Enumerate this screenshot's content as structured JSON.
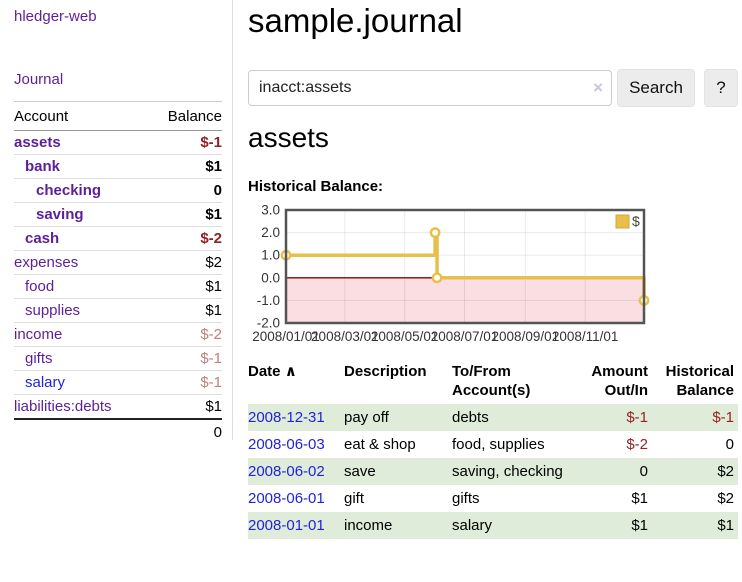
{
  "app": {
    "brand": "hledger-web",
    "nav_journal": "Journal"
  },
  "colors": {
    "link_purple": "#5c1f99",
    "link_blue": "#2222dd",
    "negative_strong": "#941f1f",
    "negative_soft": "#bf7e7e",
    "row_green": "#deecd9",
    "gold": "#e8bf4a",
    "pink_region": "#fbdee1",
    "zero_line": "#8b0000"
  },
  "sidebar": {
    "headers": {
      "account": "Account",
      "balance": "Balance"
    },
    "accounts": [
      {
        "name": "assets",
        "indent": 0,
        "balance": "$-1",
        "bold": true,
        "bal_style": "neg-strong",
        "link": "purple"
      },
      {
        "name": "bank",
        "indent": 1,
        "balance": "$1",
        "bold": true,
        "bal_style": "pos-strong",
        "link": "purple"
      },
      {
        "name": "checking",
        "indent": 2,
        "balance": "0",
        "bold": true,
        "bal_style": "pos-strong",
        "link": "purple"
      },
      {
        "name": "saving",
        "indent": 2,
        "balance": "$1",
        "bold": true,
        "bal_style": "pos-strong",
        "link": "purple"
      },
      {
        "name": "cash",
        "indent": 1,
        "balance": "$-2",
        "bold": true,
        "bal_style": "neg-strong",
        "link": "purple"
      },
      {
        "name": "expenses",
        "indent": 0,
        "balance": "$2",
        "bold": false,
        "bal_style": "pos",
        "link": "purple"
      },
      {
        "name": "food",
        "indent": 1,
        "balance": "$1",
        "bold": false,
        "bal_style": "pos",
        "link": "purple"
      },
      {
        "name": "supplies",
        "indent": 1,
        "balance": "$1",
        "bold": false,
        "bal_style": "pos",
        "link": "purple"
      },
      {
        "name": "income",
        "indent": 0,
        "balance": "$-2",
        "bold": false,
        "bal_style": "neg-soft",
        "link": "purple"
      },
      {
        "name": "gifts",
        "indent": 1,
        "balance": "$-1",
        "bold": false,
        "bal_style": "neg-soft",
        "link": "purple"
      },
      {
        "name": "salary",
        "indent": 1,
        "balance": "$-1",
        "bold": false,
        "bal_style": "neg-soft",
        "link": "blue"
      },
      {
        "name": "liabilities:debts",
        "indent": 0,
        "balance": "$1",
        "bold": false,
        "bal_style": "pos",
        "link": "purple"
      }
    ],
    "total": "0"
  },
  "main": {
    "title": "sample.journal",
    "search": {
      "value": "inacct:assets",
      "clear_icon": "×",
      "search_button": "Search",
      "help_button": "?"
    },
    "account_heading": "assets",
    "chart_label": "Historical Balance:"
  },
  "chart_data": {
    "type": "line",
    "title": "Historical Balance:",
    "step": true,
    "series": [
      {
        "name": "$",
        "color": "#e8bf4a",
        "points": [
          [
            "2008-01-01",
            1
          ],
          [
            "2008-06-01",
            2
          ],
          [
            "2008-06-03",
            0
          ],
          [
            "2008-12-31",
            -1
          ]
        ]
      }
    ],
    "x_range": [
      "2008-01-01",
      "2008-12-31"
    ],
    "ylim": [
      -2,
      3
    ],
    "yticks": [
      "3.0",
      "2.0",
      "1.0",
      "0.0",
      "-1.0",
      "-2.0"
    ],
    "xticks": [
      "2008/01/01",
      "2008/03/01",
      "2008/05/01",
      "2008/07/01",
      "2008/09/01",
      "2008/11/01"
    ],
    "grid": true,
    "legend": {
      "position": "top-right",
      "entries": [
        {
          "label": "$",
          "color": "#e8bf4a"
        }
      ]
    },
    "negative_region": true
  },
  "register": {
    "headers": {
      "date": "Date",
      "sort_arrow": "∧",
      "description": "Description",
      "tofrom_line1": "To/From",
      "tofrom_line2": "Account(s)",
      "amount_line1": "Amount",
      "amount_line2": "Out/In",
      "hist_line1": "Historical",
      "hist_line2": "Balance"
    },
    "rows": [
      {
        "date": "2008-12-31",
        "description": "pay off",
        "tofrom": "debts",
        "amount": "$-1",
        "amount_neg": true,
        "hist": "$-1",
        "hist_neg": true,
        "green": true
      },
      {
        "date": "2008-06-03",
        "description": "eat & shop",
        "tofrom": "food, supplies",
        "amount": "$-2",
        "amount_neg": true,
        "hist": "0",
        "hist_neg": false,
        "green": false
      },
      {
        "date": "2008-06-02",
        "description": "save",
        "tofrom": "saving, checking",
        "amount": "0",
        "amount_neg": false,
        "hist": "$2",
        "hist_neg": false,
        "green": true,
        "tofrom_wrap": true
      },
      {
        "date": "2008-06-01",
        "description": "gift",
        "tofrom": "gifts",
        "amount": "$1",
        "amount_neg": false,
        "hist": "$2",
        "hist_neg": false,
        "green": false
      },
      {
        "date": "2008-01-01",
        "description": "income",
        "tofrom": "salary",
        "amount": "$1",
        "amount_neg": false,
        "hist": "$1",
        "hist_neg": false,
        "green": true
      }
    ]
  }
}
